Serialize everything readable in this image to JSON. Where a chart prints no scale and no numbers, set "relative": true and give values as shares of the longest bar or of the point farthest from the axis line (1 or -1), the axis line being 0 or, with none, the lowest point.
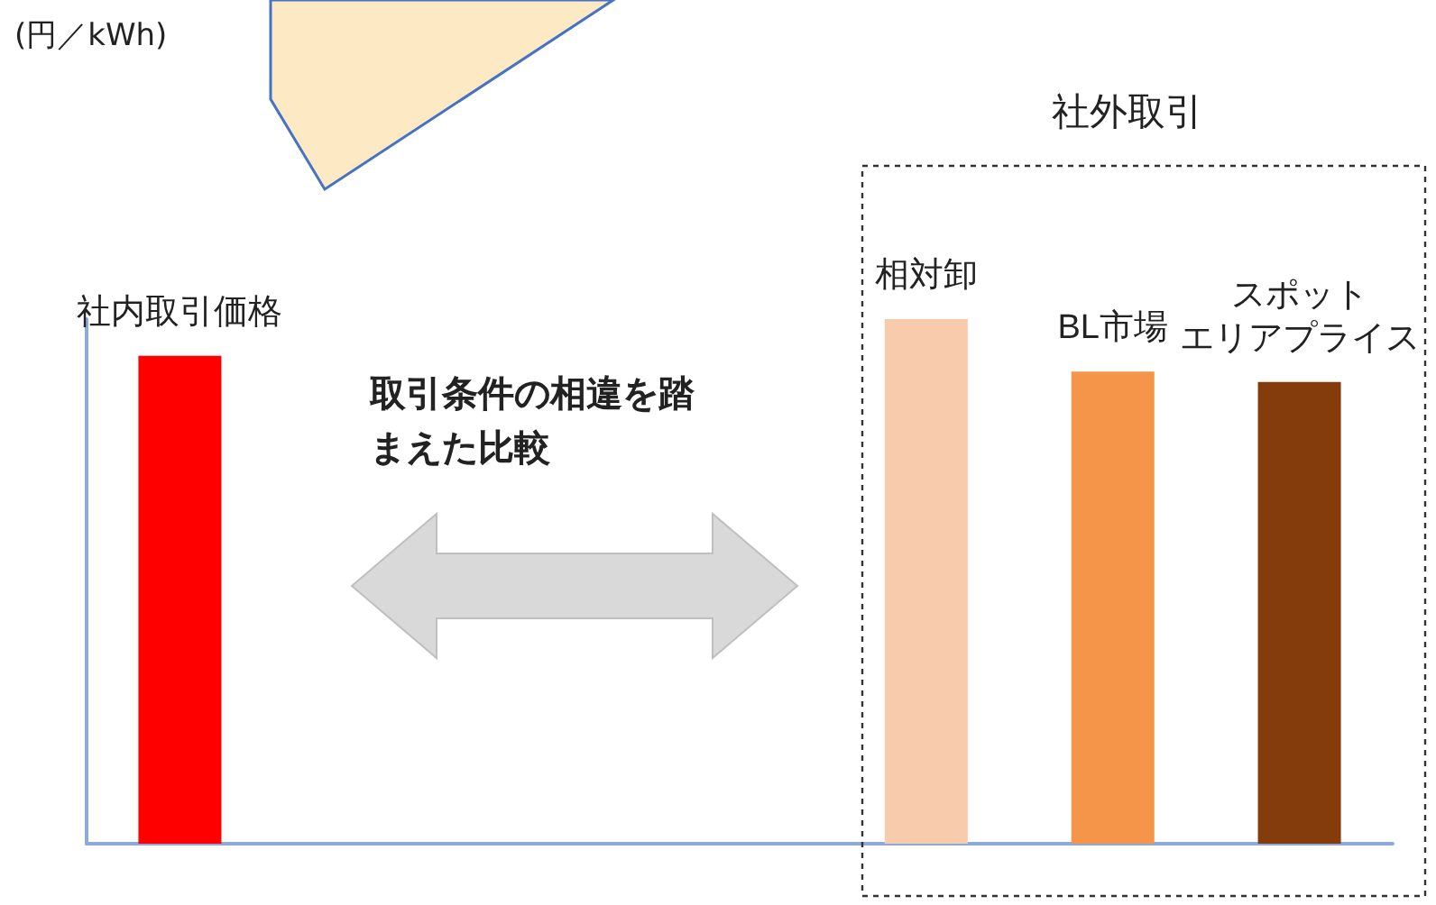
{
  "chart_data": {
    "type": "bar",
    "relative": true,
    "categories": [
      "社内取引価格",
      null,
      null,
      null,
      "相対卸",
      "BL市場",
      "スポットエリアプライス"
    ],
    "values": [
      0.93,
      null,
      null,
      null,
      1,
      0.9,
      0.88
    ],
    "colors": [
      "#ff0000",
      "#ffffff",
      "#ffffff",
      "#ffffff",
      "#f8cbad",
      "#f4954a",
      "#843c0c"
    ],
    "annotations": [
      "社外取引",
      "取引条件の相違を踏まえた比較",
      "(円／kWh)"
    ],
    "grid": false
  }
}
